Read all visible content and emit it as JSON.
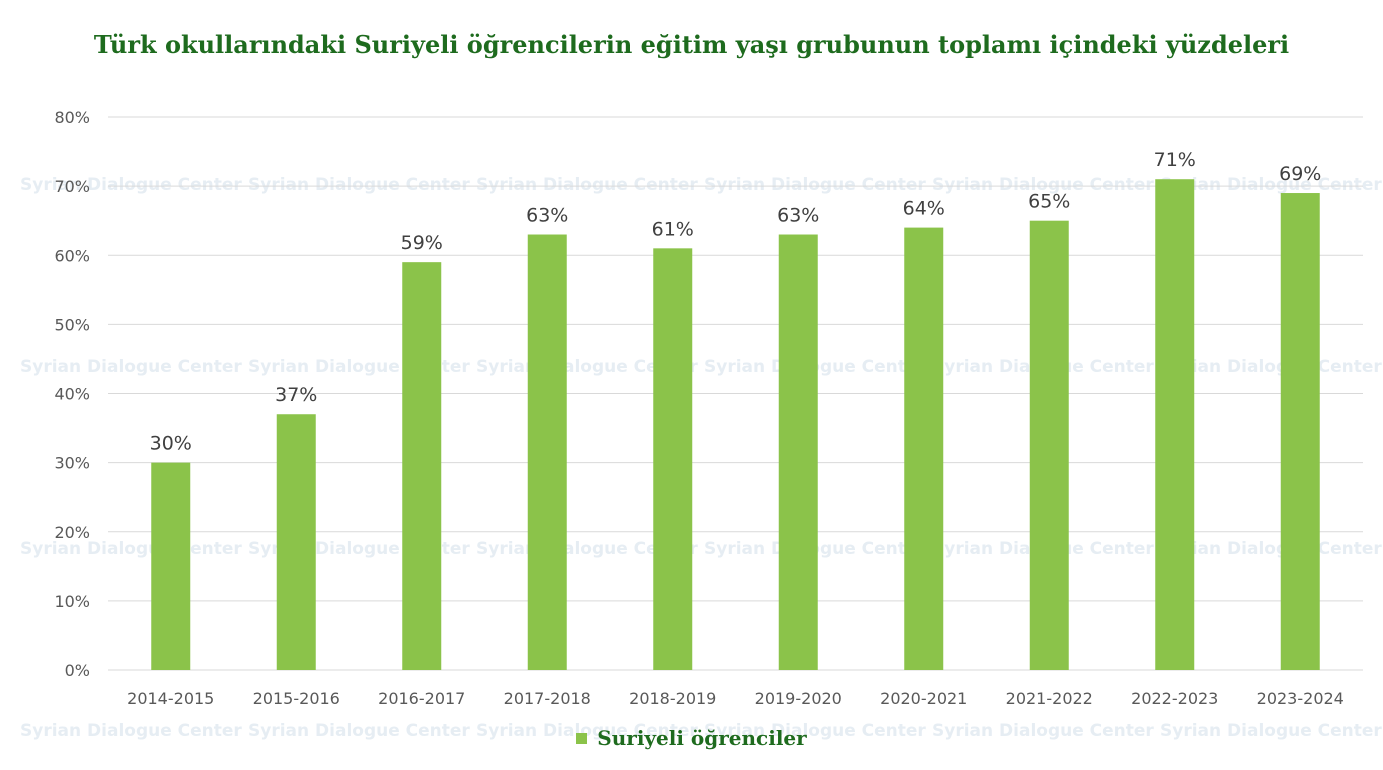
{
  "colors": {
    "bar": "#8bc34a",
    "title": "#1e6b1e",
    "grid": "#d9d9d9",
    "axis_text": "#595959",
    "label_text": "#404040",
    "watermark": "#e6edf3"
  },
  "watermark_text": "Syrian Dialogue Center",
  "chart_data": {
    "type": "bar",
    "title": "Türk okullarındaki Suriyeli öğrencilerin eğitim yaşı grubunun toplamı içindeki yüzdeleri",
    "categories": [
      "2014-2015",
      "2015-2016",
      "2016-2017",
      "2017-2018",
      "2018-2019",
      "2019-2020",
      "2020-2021",
      "2021-2022",
      "2022-2023",
      "2023-2024"
    ],
    "series": [
      {
        "name": "Suriyeli öğrenciler",
        "values": [
          30,
          37,
          59,
          63,
          61,
          63,
          64,
          65,
          71,
          69
        ]
      }
    ],
    "data_labels": [
      "30%",
      "37%",
      "59%",
      "63%",
      "61%",
      "63%",
      "64%",
      "65%",
      "71%",
      "69%"
    ],
    "y_ticks": [
      "0%",
      "10%",
      "20%",
      "30%",
      "40%",
      "50%",
      "60%",
      "70%",
      "80%"
    ],
    "ylim": [
      0,
      80
    ],
    "grid": true,
    "legend_position": "bottom"
  }
}
